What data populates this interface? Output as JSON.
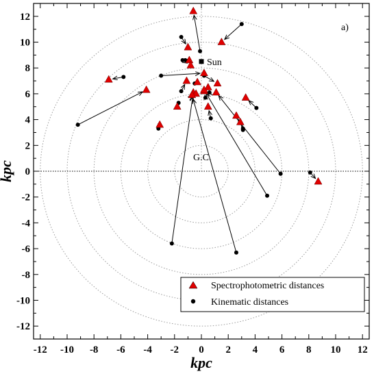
{
  "chart_data": {
    "type": "scatter",
    "panel_label": "a)",
    "xlabel": "kpc",
    "ylabel": "kpc",
    "xlim": [
      -12.5,
      12.5
    ],
    "ylim": [
      -13,
      13
    ],
    "xticks": [
      -12,
      -10,
      -8,
      -6,
      -4,
      -2,
      0,
      2,
      4,
      6,
      8,
      10,
      12
    ],
    "yticks": [
      -12,
      -10,
      -8,
      -6,
      -4,
      -2,
      0,
      2,
      4,
      6,
      8,
      10,
      12
    ],
    "grid": "concentric dotted circles around the Galactic Centre",
    "circle_radii": [
      2,
      4,
      6,
      8,
      10,
      12
    ],
    "annotations": {
      "galactic_center": {
        "label": "G.C.",
        "x": 0,
        "y": 0
      },
      "sun": {
        "label": "Sun",
        "x": 0,
        "y": 8.5
      }
    },
    "legend": {
      "position": "bottom-right",
      "entries": [
        "Spectrophotometric distances",
        "Kinematic distances"
      ]
    },
    "pairs": [
      {
        "spectro": [
          -0.6,
          12.4
        ],
        "kinematic": [
          -0.1,
          9.3
        ]
      },
      {
        "spectro": [
          1.5,
          10.0
        ],
        "kinematic": [
          3.0,
          11.4
        ]
      },
      {
        "spectro": [
          -1.0,
          9.6
        ],
        "kinematic": [
          -1.5,
          10.4
        ]
      },
      {
        "spectro": [
          -0.9,
          8.6
        ],
        "kinematic": [
          -1.2,
          8.6
        ]
      },
      {
        "spectro": [
          -0.8,
          8.2
        ],
        "kinematic": [
          -1.4,
          8.6
        ]
      },
      {
        "spectro": [
          -6.9,
          7.1
        ],
        "kinematic": [
          -5.8,
          7.3
        ]
      },
      {
        "spectro": [
          -4.1,
          6.3
        ],
        "kinematic": [
          -9.2,
          3.6
        ]
      },
      {
        "spectro": [
          0.2,
          7.6
        ],
        "kinematic": [
          -3.0,
          7.4
        ]
      },
      {
        "spectro": [
          -1.1,
          7.0
        ],
        "kinematic": [
          -1.5,
          6.2
        ]
      },
      {
        "spectro": [
          -0.3,
          6.9
        ],
        "kinematic": [
          -0.5,
          6.8
        ]
      },
      {
        "spectro": [
          1.2,
          6.8
        ],
        "kinematic": [
          0.2,
          7.4
        ]
      },
      {
        "spectro": [
          -0.6,
          6.1
        ],
        "kinematic": [
          -2.2,
          -5.6
        ]
      },
      {
        "spectro": [
          -0.4,
          6.0
        ],
        "kinematic": [
          -0.7,
          5.8
        ]
      },
      {
        "spectro": [
          0.2,
          6.2
        ],
        "kinematic": [
          0.3,
          5.7
        ]
      },
      {
        "spectro": [
          0.5,
          6.5
        ],
        "kinematic": [
          0.6,
          6.1
        ]
      },
      {
        "spectro": [
          1.1,
          6.1
        ],
        "kinematic": [
          5.9,
          -0.2
        ]
      },
      {
        "spectro": [
          3.3,
          5.7
        ],
        "kinematic": [
          4.1,
          4.9
        ]
      },
      {
        "spectro": [
          -1.8,
          5.0
        ],
        "kinematic": [
          -1.7,
          5.3
        ]
      },
      {
        "spectro": [
          0.5,
          5.0
        ],
        "kinematic": [
          0.7,
          4.1
        ]
      },
      {
        "spectro": [
          -0.7,
          5.9
        ],
        "kinematic": [
          2.6,
          -6.3
        ]
      },
      {
        "spectro": [
          2.6,
          4.3
        ],
        "kinematic": [
          3.1,
          3.3
        ]
      },
      {
        "spectro": [
          2.9,
          3.8
        ],
        "kinematic": [
          3.1,
          3.2
        ]
      },
      {
        "spectro": [
          -3.1,
          3.6
        ],
        "kinematic": [
          -3.2,
          3.3
        ]
      },
      {
        "spectro": [
          0.2,
          6.3
        ],
        "kinematic": [
          4.9,
          -1.9
        ]
      },
      {
        "spectro": [
          8.7,
          -0.8
        ],
        "kinematic": [
          8.1,
          -0.1
        ]
      }
    ]
  }
}
